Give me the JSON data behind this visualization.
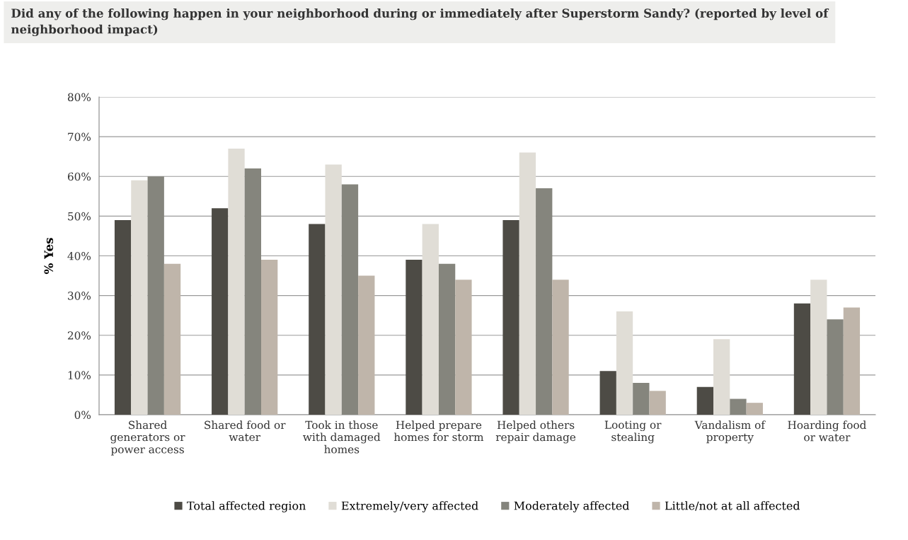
{
  "chart_data": {
    "type": "bar",
    "title": "Did any of the following happen in your neighborhood during or immediately after Superstorm Sandy? (reported by level of neighborhood impact)",
    "ylabel": "% Yes",
    "categories": [
      "Shared\ngenerators or\npower access",
      "Shared food or\nwater",
      "Took in those\nwith damaged\nhomes",
      "Helped prepare\nhomes for storm",
      "Helped others\nrepair damage",
      "Looting or\nstealing",
      "Vandalism of\nproperty",
      "Hoarding food\nor water"
    ],
    "series": [
      {
        "name": "Total affected region",
        "color": "#4d4b45",
        "values": [
          49,
          52,
          48,
          39,
          49,
          11,
          7,
          28
        ]
      },
      {
        "name": "Extremely/very affected",
        "color": "#e0ddd6",
        "values": [
          59,
          67,
          63,
          48,
          66,
          26,
          19,
          34
        ]
      },
      {
        "name": "Moderately affected",
        "color": "#85857d",
        "values": [
          60,
          62,
          58,
          38,
          57,
          8,
          4,
          24
        ]
      },
      {
        "name": "Little/not at all affected",
        "color": "#bfb5aa",
        "values": [
          38,
          39,
          35,
          34,
          34,
          6,
          3,
          27
        ]
      }
    ],
    "ylim": [
      0,
      80
    ],
    "yticks": [
      {
        "value": 0,
        "label": "0%"
      },
      {
        "value": 10,
        "label": "10%"
      },
      {
        "value": 20,
        "label": "20%"
      },
      {
        "value": 30,
        "label": "30%"
      },
      {
        "value": 40,
        "label": "40%"
      },
      {
        "value": 50,
        "label": "50%"
      },
      {
        "value": 60,
        "label": "60%"
      },
      {
        "value": 70,
        "label": "70%"
      },
      {
        "value": 80,
        "label": "80%"
      }
    ],
    "grid": "y",
    "legend": "bottom"
  }
}
